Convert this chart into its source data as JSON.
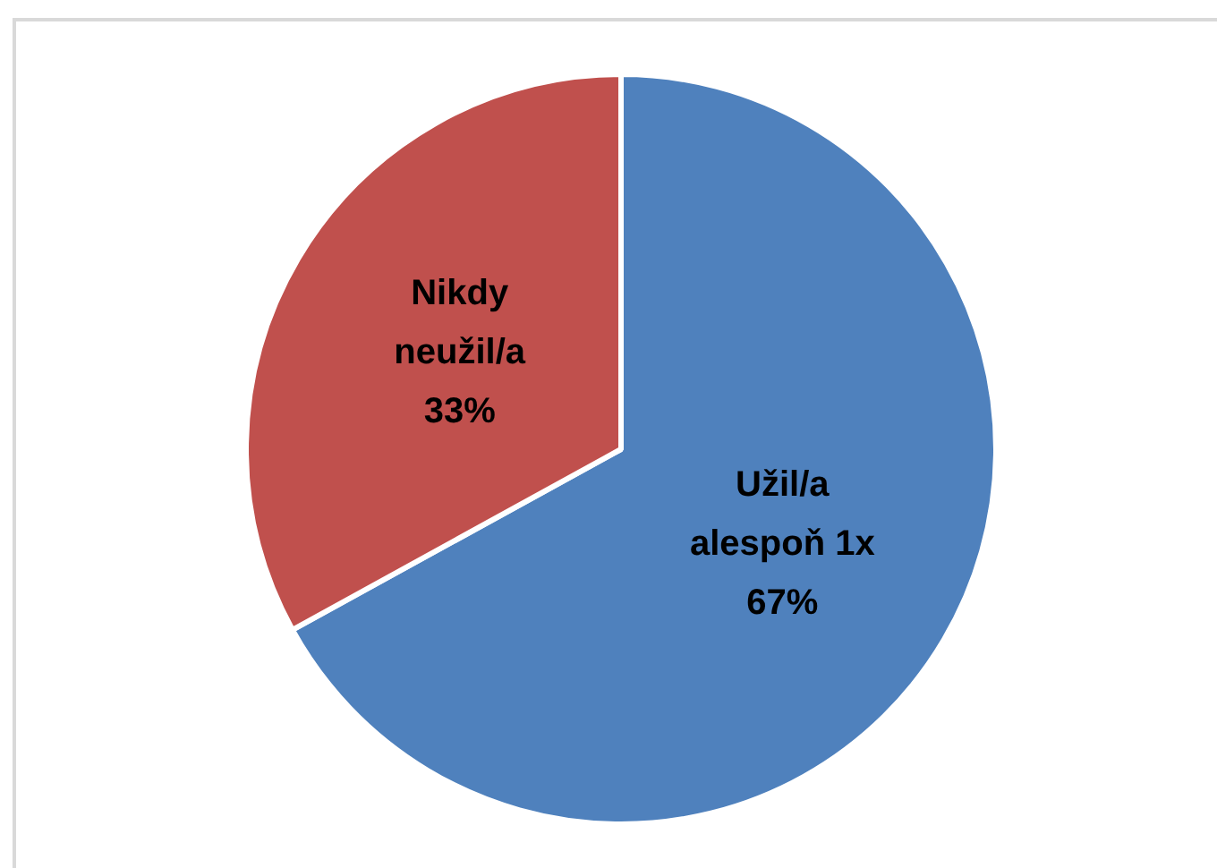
{
  "chart_data": {
    "type": "pie",
    "categories": [
      "Užil/a alespoň 1x",
      "Nikdy neužil/a"
    ],
    "values": [
      67,
      33
    ],
    "colors": [
      "#4f81bd",
      "#c0504d"
    ],
    "value_labels": [
      "67%",
      "33%"
    ],
    "legend": false
  }
}
